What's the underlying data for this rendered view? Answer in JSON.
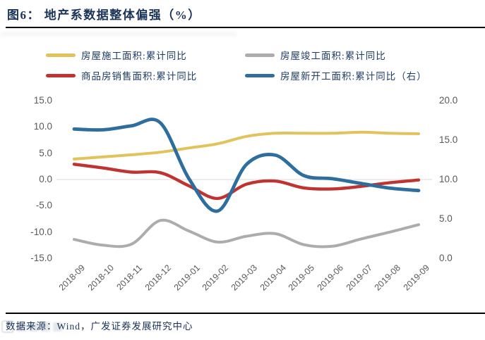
{
  "figure": {
    "title": "图6： 地产系数据整体偏强（%）",
    "source_note": "数据来源：Wind，广发证券发展研究中心"
  },
  "colors": {
    "title_navy": "#1a3358",
    "legend_navy": "#1f3c64",
    "axis_label_gray": "#595959",
    "gridline": "#d9d9d9",
    "rule_black": "#000000"
  },
  "chart_data": {
    "type": "line",
    "title": "地产系数据整体偏强（%）",
    "legend_position": "top",
    "grid": "single horizontal gridline at left-axis 0.0 (right-axis 10.0)",
    "x": [
      "2018-09",
      "2018-10",
      "2018-11",
      "2018-12",
      "2019-01",
      "2019-02",
      "2019-03",
      "2019-04",
      "2019-05",
      "2019-06",
      "2019-07",
      "2019-08",
      "2019-09"
    ],
    "left_axis": {
      "ticks": [
        "15.0",
        "10.0",
        "5.0",
        "0.0",
        "-5.0",
        "-10.0",
        "-15.0"
      ],
      "range": [
        -15.0,
        15.0
      ]
    },
    "right_axis": {
      "ticks": [
        "20.0",
        "15.0",
        "10.0",
        "5.0",
        "0.0"
      ],
      "range": [
        0.0,
        20.0
      ]
    },
    "series": [
      {
        "key": "construction",
        "name": "房屋施工面积:累计同比",
        "axis": "left",
        "color": "#e2c25a",
        "values": [
          3.9,
          4.3,
          4.7,
          5.2,
          6.0,
          6.8,
          8.2,
          8.8,
          8.8,
          8.8,
          9.0,
          8.8,
          8.7
        ]
      },
      {
        "key": "completion",
        "name": "房屋竣工面积:累计同比",
        "axis": "left",
        "color": "#acacac",
        "values": [
          -11.4,
          -12.5,
          -12.3,
          -7.8,
          -9.8,
          -11.9,
          -10.8,
          -10.3,
          -12.4,
          -12.7,
          -11.3,
          -10.0,
          -8.6
        ]
      },
      {
        "key": "sales",
        "name": "商品房销售面积:累计同比",
        "axis": "left",
        "color": "#bf3330",
        "values": [
          2.9,
          2.2,
          1.4,
          1.3,
          -1.2,
          -3.6,
          -0.9,
          -0.3,
          -1.6,
          -1.8,
          -1.3,
          -0.6,
          -0.1
        ]
      },
      {
        "key": "new_starts",
        "name": "房屋新开工面积:累计同比（右）",
        "axis": "right",
        "color": "#2e6e9e",
        "values": [
          16.4,
          16.3,
          16.8,
          17.2,
          10.1,
          6.0,
          11.9,
          13.1,
          10.5,
          10.1,
          9.5,
          8.9,
          8.6
        ]
      }
    ]
  }
}
